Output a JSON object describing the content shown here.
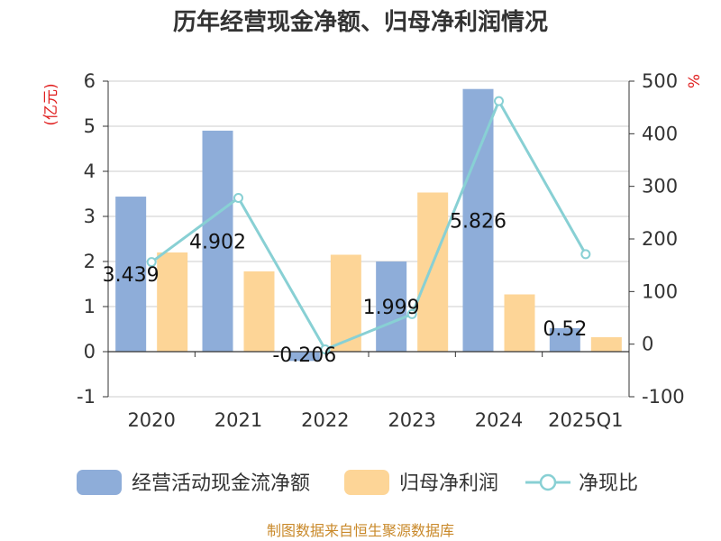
{
  "chart_data": {
    "type": "bar",
    "title": "历年经营现金净额、归母净利润情况",
    "categories": [
      "2020",
      "2021",
      "2022",
      "2023",
      "2024",
      "2025Q1"
    ],
    "series": [
      {
        "name": "经营活动现金流净额",
        "type": "bar",
        "axis": "left",
        "color": "#8eadd9",
        "values": [
          3.439,
          4.902,
          -0.206,
          1.999,
          5.826,
          0.52
        ],
        "labels": [
          "3.439",
          "4.902",
          "-0.206",
          "1.999",
          "5.826",
          "0.52"
        ]
      },
      {
        "name": "归母净利润",
        "type": "bar",
        "axis": "left",
        "color": "#fdd597",
        "values": [
          2.2,
          1.78,
          2.15,
          3.53,
          1.27,
          0.32
        ]
      },
      {
        "name": "净现比",
        "type": "line",
        "axis": "right",
        "color": "#88d0d4",
        "values": [
          156,
          278,
          -10,
          57,
          462,
          171
        ]
      }
    ],
    "y_left": {
      "unit": "(亿元)",
      "ylim": [
        -1,
        6
      ],
      "ticks": [
        "-1",
        "0",
        "1",
        "2",
        "3",
        "4",
        "5",
        "6"
      ]
    },
    "y_right": {
      "unit": "%",
      "ylim": [
        -100,
        500
      ],
      "ticks": [
        "-100",
        "0",
        "100",
        "200",
        "300",
        "400",
        "500"
      ]
    },
    "grid": true,
    "legend_position": "bottom"
  },
  "source": "制图数据来自恒生聚源数据库"
}
